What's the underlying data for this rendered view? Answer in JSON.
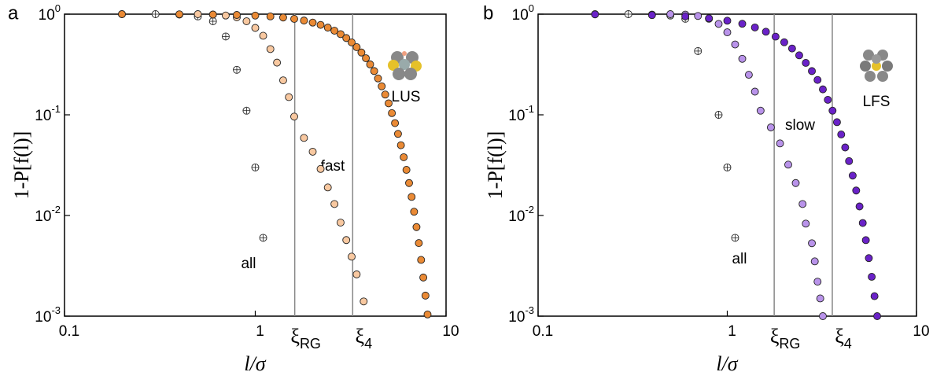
{
  "chart_data": [
    {
      "type": "scatter",
      "panel": "a",
      "xlabel": "l/σ",
      "ylabel": "1-P[f(l)]",
      "log_x": true,
      "log_y": true,
      "xlim": [
        0.1,
        10
      ],
      "ylim": [
        0.001,
        1
      ],
      "xticks": [
        0.1,
        1,
        10
      ],
      "yticks": [
        {
          "value": 0.001,
          "label": "10",
          "exponent": "-3"
        },
        {
          "value": 0.01,
          "label": "10",
          "exponent": "-2"
        },
        {
          "value": 0.1,
          "label": "10",
          "exponent": "-1"
        },
        {
          "value": 1,
          "label": "10",
          "exponent": "0"
        }
      ],
      "vlines": [
        {
          "x": 1.61,
          "label": "ξ",
          "subscript": "RG"
        },
        {
          "x": 3.24,
          "label": "ξ",
          "subscript": "4"
        }
      ],
      "annotation": "LUS",
      "series": [
        {
          "name": "all",
          "color": "#ffffff",
          "x": [
            0.2,
            0.3,
            0.4,
            0.5,
            0.6,
            0.7,
            0.8,
            0.9,
            1.0,
            1.1
          ],
          "values": [
            1,
            1,
            0.99,
            0.95,
            0.85,
            0.6,
            0.28,
            0.11,
            0.03,
            0.006
          ]
        },
        {
          "name": "fast",
          "color": "#f8c8a0",
          "x": [
            0.5,
            0.6,
            0.7,
            0.8,
            0.9,
            1.0,
            1.1,
            1.2,
            1.3,
            1.4,
            1.5,
            1.6,
            1.8,
            2.0,
            2.2,
            2.4,
            2.6,
            2.8,
            3.0,
            3.2,
            3.4,
            3.7
          ],
          "values": [
            1,
            0.99,
            0.97,
            0.93,
            0.85,
            0.73,
            0.61,
            0.45,
            0.33,
            0.22,
            0.15,
            0.096,
            0.059,
            0.043,
            0.029,
            0.019,
            0.013,
            0.0085,
            0.0057,
            0.0039,
            0.0026,
            0.0014
          ]
        },
        {
          "color": "#ea8a35",
          "x": [
            0.2,
            0.4,
            0.6,
            0.8,
            1.0,
            1.2,
            1.4,
            1.6,
            1.8,
            2.0,
            2.2,
            2.4,
            2.6,
            2.8,
            3.0,
            3.2,
            3.4,
            3.6,
            3.8,
            4.0,
            4.2,
            4.4,
            4.6,
            4.8,
            5.0,
            5.2,
            5.4,
            5.6,
            5.8,
            6.0,
            6.2,
            6.4,
            6.6,
            6.8,
            7.0,
            7.2,
            7.4,
            7.6,
            7.8,
            8.0
          ],
          "values": [
            1,
            0.997,
            0.991,
            0.982,
            0.968,
            0.95,
            0.926,
            0.898,
            0.864,
            0.825,
            0.782,
            0.735,
            0.685,
            0.633,
            0.579,
            0.524,
            0.47,
            0.416,
            0.365,
            0.317,
            0.272,
            0.23,
            0.192,
            0.159,
            0.13,
            0.104,
            0.0827,
            0.0647,
            0.0499,
            0.0379,
            0.0284,
            0.021,
            0.0153,
            0.0109,
            0.00767,
            0.00532,
            0.00362,
            0.00242,
            0.0016,
            0.00104
          ]
        }
      ]
    },
    {
      "type": "scatter",
      "panel": "b",
      "xlabel": "l/σ",
      "ylabel": "1-P[f(l)]",
      "log_x": true,
      "log_y": true,
      "xlim": [
        0.1,
        10
      ],
      "ylim": [
        0.001,
        1
      ],
      "xticks": [
        0.1,
        1,
        10
      ],
      "yticks": [
        {
          "value": 0.001,
          "label": "10",
          "exponent": "-3"
        },
        {
          "value": 0.01,
          "label": "10",
          "exponent": "-2"
        },
        {
          "value": 0.1,
          "label": "10",
          "exponent": "-1"
        },
        {
          "value": 1,
          "label": "10",
          "exponent": "0"
        }
      ],
      "vlines": [
        {
          "x": 1.77,
          "label": "ξ",
          "subscript": "RG"
        },
        {
          "x": 3.59,
          "label": "ξ",
          "subscript": "4"
        }
      ],
      "annotation": "LFS",
      "series": [
        {
          "name": "all",
          "color": "#ffffff",
          "x": [
            0.2,
            0.3,
            0.4,
            0.5,
            0.6,
            0.7,
            0.9,
            1.0,
            1.1
          ],
          "values": [
            1,
            1,
            0.99,
            0.97,
            0.9,
            0.43,
            0.1,
            0.03,
            0.006
          ]
        },
        {
          "name": "slow",
          "color": "#b993ea",
          "x": [
            0.5,
            0.6,
            0.7,
            0.8,
            0.9,
            1.0,
            1.1,
            1.2,
            1.3,
            1.4,
            1.5,
            1.7,
            1.9,
            2.1,
            2.3,
            2.5,
            2.6,
            2.8,
            2.9,
            3.0,
            3.1,
            3.2
          ],
          "values": [
            1,
            0.99,
            0.96,
            0.9,
            0.8,
            0.66,
            0.5,
            0.36,
            0.25,
            0.17,
            0.11,
            0.075,
            0.052,
            0.032,
            0.021,
            0.013,
            0.0083,
            0.0053,
            0.0035,
            0.0022,
            0.0015,
            0.001
          ]
        },
        {
          "color": "#6a22c8",
          "x": [
            0.2,
            0.4,
            0.6,
            0.8,
            1.0,
            1.2,
            1.4,
            1.6,
            1.8,
            2.0,
            2.2,
            2.4,
            2.6,
            2.8,
            3.0,
            3.2,
            3.4,
            3.6,
            3.8,
            4.0,
            4.2,
            4.4,
            4.6,
            4.8,
            5.0,
            5.2,
            5.4,
            5.6,
            5.8,
            6.0,
            6.2
          ],
          "values": [
            0.995,
            0.978,
            0.95,
            0.91,
            0.861,
            0.803,
            0.738,
            0.669,
            0.598,
            0.526,
            0.456,
            0.39,
            0.328,
            0.272,
            0.222,
            0.179,
            0.141,
            0.11,
            0.0845,
            0.0638,
            0.0474,
            0.0347,
            0.0249,
            0.0177,
            0.0123,
            0.00842,
            0.00569,
            0.00377,
            0.00246,
            0.00158,
            0.001
          ]
        }
      ]
    }
  ]
}
